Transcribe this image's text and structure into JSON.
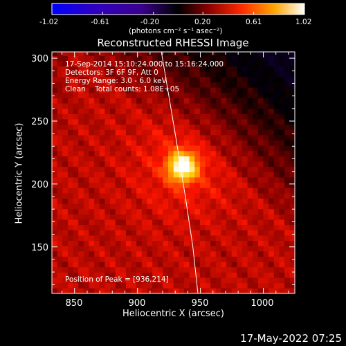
{
  "colorbar": {
    "ticks": [
      "-1.02",
      "-0.61",
      "-0.20",
      "0.20",
      "0.61",
      "1.02"
    ],
    "values": [
      -1.02,
      -0.61,
      -0.2,
      0.2,
      0.61,
      1.02
    ],
    "units_label": "(photons cm⁻² s⁻¹ asec⁻²)"
  },
  "chart_data": {
    "type": "heatmap",
    "title": "Reconstructed RHESSI Image",
    "xlabel": "Heliocentric X (arcsec)",
    "ylabel": "Heliocentric Y (arcsec)",
    "xlim": [
      832,
      1025
    ],
    "ylim": [
      113,
      305
    ],
    "xticks": [
      850,
      900,
      950,
      1000
    ],
    "yticks": [
      150,
      200,
      250,
      300
    ],
    "xtick_labels": [
      "850",
      "900",
      "950",
      "1000"
    ],
    "ytick_labels": [
      "150",
      "200",
      "250",
      "300"
    ],
    "annotations": [
      "17-Sep-2014 15:10:24.000 to 15:16:24.000",
      "Detectors: 3F 6F 9F, Att 0",
      "Energy Range: 3.0 - 6.0 keV",
      "Clean    Total counts: 1.08E+05"
    ],
    "peak_label": "Position of Peak = [936,214]",
    "peak": {
      "x": 936,
      "y": 214,
      "value": 1.02
    },
    "limb_curve": [
      [
        919,
        305
      ],
      [
        930,
        240
      ],
      [
        938,
        190
      ],
      [
        944,
        150
      ],
      [
        948,
        113
      ]
    ],
    "colormap": {
      "negative": [
        "#000000",
        "#1f005a",
        "#4000a5",
        "#0000ff"
      ],
      "positive": [
        "#000000",
        "#7f0000",
        "#ff1500",
        "#ff8a00",
        "#ffd200",
        "#ffffff"
      ]
    }
  },
  "footer": {
    "date_stamp": "17-May-2022 07:25"
  }
}
